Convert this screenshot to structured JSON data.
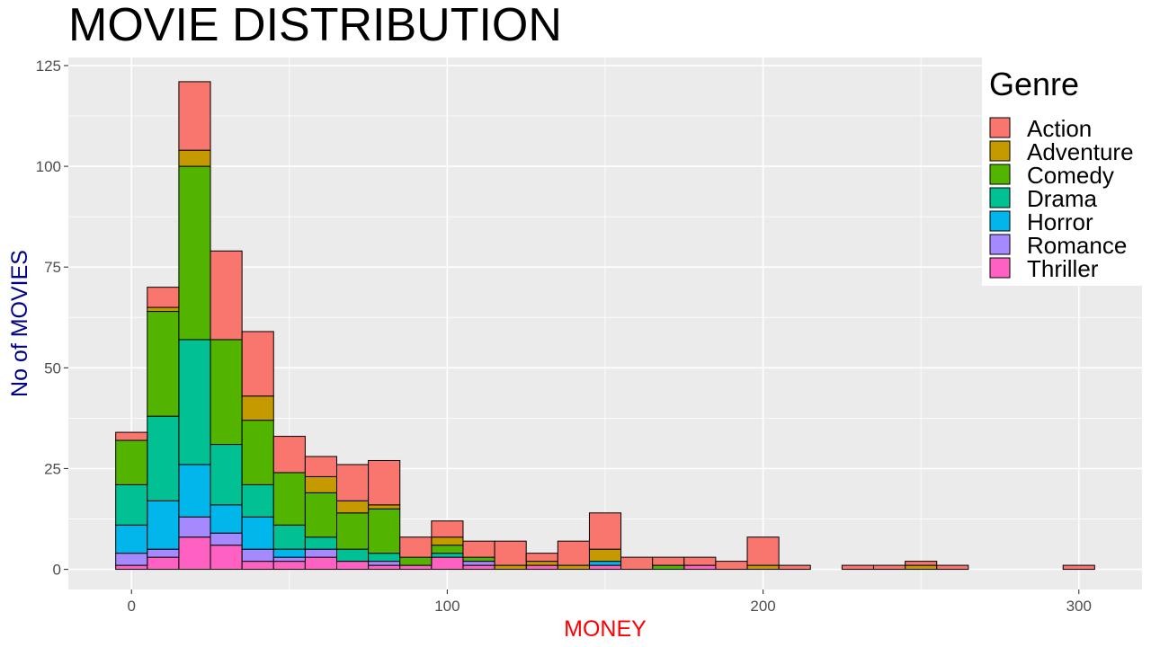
{
  "chart_data": {
    "type": "bar",
    "stacked": true,
    "title": "MOVIE DISTRIBUTION",
    "xlabel": "MONEY",
    "ylabel": "No of MOVIES",
    "xlim": [
      -20,
      320
    ],
    "ylim": [
      -5,
      127
    ],
    "x_ticks": [
      0,
      100,
      200,
      300
    ],
    "y_ticks": [
      0,
      25,
      50,
      75,
      100,
      125
    ],
    "grid": true,
    "legend_title": "Genre",
    "legend_position": "right",
    "bin_width": 10,
    "x": [
      0,
      10,
      20,
      30,
      40,
      50,
      60,
      70,
      80,
      90,
      100,
      110,
      120,
      130,
      140,
      150,
      160,
      170,
      180,
      190,
      200,
      210,
      220,
      230,
      240,
      250,
      260,
      270,
      280,
      290,
      300
    ],
    "series": [
      {
        "name": "Thriller",
        "color": "#FF61C3",
        "values": [
          1,
          3,
          8,
          6,
          2,
          2,
          3,
          2,
          1,
          1,
          3,
          1,
          0,
          1,
          0,
          1,
          0,
          0,
          1,
          0,
          0,
          0,
          0,
          0,
          0,
          0,
          0,
          0,
          0,
          0,
          0
        ]
      },
      {
        "name": "Romance",
        "color": "#A58AFF",
        "values": [
          3,
          2,
          5,
          3,
          3,
          1,
          2,
          0,
          1,
          0,
          0,
          1,
          0,
          0,
          0,
          0,
          0,
          0,
          0,
          0,
          0,
          0,
          0,
          0,
          0,
          0,
          0,
          0,
          0,
          0,
          0
        ]
      },
      {
        "name": "Horror",
        "color": "#00B6EB",
        "values": [
          7,
          12,
          13,
          7,
          8,
          2,
          0,
          0,
          0,
          0,
          0,
          0,
          0,
          0,
          0,
          1,
          0,
          0,
          0,
          0,
          0,
          0,
          0,
          0,
          0,
          0,
          0,
          0,
          0,
          0,
          0
        ]
      },
      {
        "name": "Drama",
        "color": "#00C094",
        "values": [
          10,
          21,
          31,
          15,
          8,
          6,
          3,
          3,
          2,
          0,
          1,
          0,
          0,
          0,
          0,
          0,
          0,
          0,
          0,
          0,
          0,
          0,
          0,
          0,
          0,
          0,
          0,
          0,
          0,
          0,
          0
        ]
      },
      {
        "name": "Comedy",
        "color": "#53B400",
        "values": [
          11,
          26,
          43,
          26,
          16,
          13,
          11,
          9,
          11,
          2,
          2,
          1,
          0,
          0,
          0,
          0,
          0,
          1,
          0,
          0,
          0,
          0,
          0,
          0,
          0,
          0,
          0,
          0,
          0,
          0,
          0
        ]
      },
      {
        "name": "Adventure",
        "color": "#C49A00",
        "values": [
          0,
          1,
          4,
          0,
          6,
          0,
          4,
          3,
          1,
          0,
          2,
          0,
          1,
          1,
          1,
          3,
          0,
          0,
          0,
          0,
          1,
          0,
          0,
          0,
          0,
          1,
          0,
          0,
          0,
          0,
          0
        ]
      },
      {
        "name": "Action",
        "color": "#F8766D",
        "values": [
          2,
          5,
          17,
          22,
          16,
          9,
          5,
          9,
          11,
          5,
          4,
          4,
          6,
          2,
          6,
          9,
          3,
          2,
          2,
          2,
          7,
          1,
          0,
          1,
          1,
          1,
          1,
          0,
          0,
          0,
          1
        ]
      }
    ]
  },
  "colors": {
    "panel_background": "#EBEBEB",
    "grid": "#FFFFFF",
    "xlabel_color": "#FF0000",
    "ylabel_color": "#00008B",
    "bar_outline": "#000000"
  }
}
